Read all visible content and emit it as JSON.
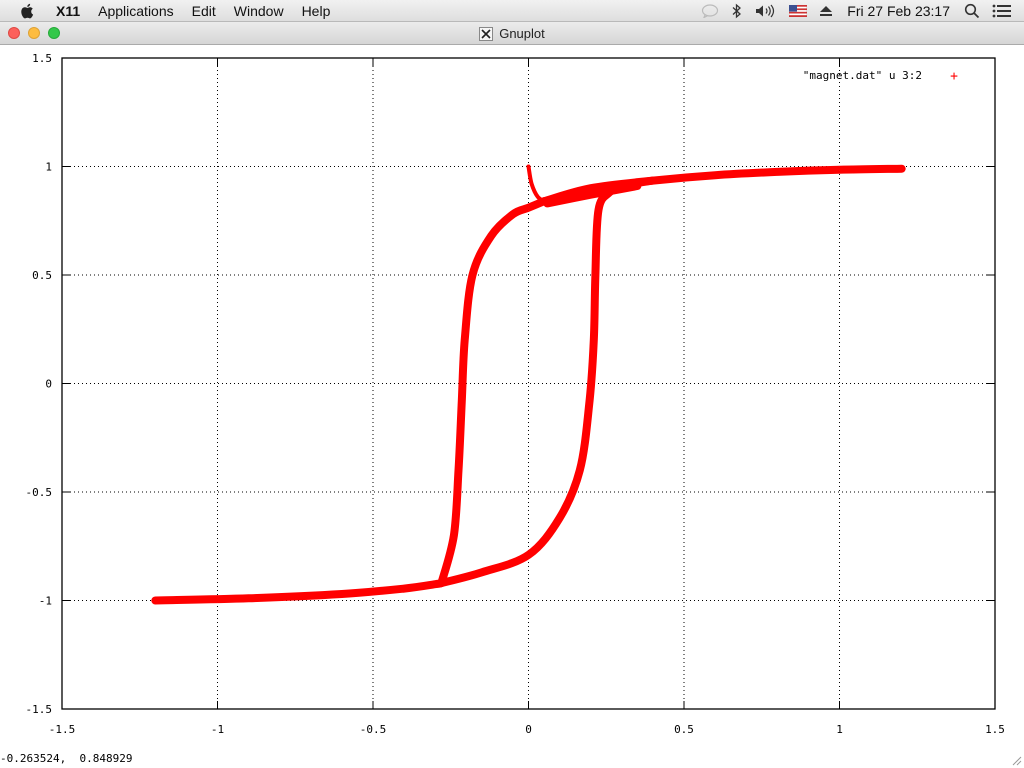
{
  "menubar": {
    "app_name": "X11",
    "items": [
      "Applications",
      "Edit",
      "Window",
      "Help"
    ],
    "clock": "Fri 27 Feb  23:17",
    "icons": [
      "apple-icon",
      "notifications-icon",
      "bluetooth-icon",
      "volume-icon",
      "us-flag-icon",
      "eject-icon",
      "spotlight-search-icon",
      "list-menu-icon"
    ]
  },
  "window": {
    "title": "Gnuplot"
  },
  "status": {
    "coordinate_readout": "-0.263524,  0.848929"
  },
  "chart_data": {
    "type": "line",
    "legend": {
      "label": "\"magnet.dat\" u 3:2",
      "marker": "+",
      "position": "top-right"
    },
    "series": [
      {
        "name": "\"magnet.dat\" u 3:2",
        "color": "#ff0000",
        "segments": [
          {
            "x": [
              -1.2,
              -0.9,
              -0.6,
              -0.4,
              -0.3,
              -0.28
            ],
            "y": [
              -1.0,
              -0.99,
              -0.97,
              -0.945,
              -0.925,
              -0.92
            ]
          },
          {
            "x": [
              -0.28,
              -0.24,
              -0.225,
              -0.215,
              -0.205,
              -0.18,
              -0.12,
              -0.05,
              0.0,
              0.05
            ],
            "y": [
              -0.92,
              -0.7,
              -0.4,
              -0.1,
              0.2,
              0.5,
              0.68,
              0.78,
              0.81,
              0.84
            ]
          },
          {
            "x": [
              -0.28,
              -0.15,
              0.0,
              0.1,
              0.165,
              0.195,
              0.21,
              0.215,
              0.225,
              0.26,
              0.3,
              0.4
            ],
            "y": [
              -0.92,
              -0.87,
              -0.79,
              -0.62,
              -0.4,
              -0.1,
              0.2,
              0.5,
              0.8,
              0.88,
              0.91,
              0.935
            ]
          },
          {
            "x": [
              0.05,
              0.2,
              0.4,
              0.6,
              0.8,
              1.0,
              1.2
            ],
            "y": [
              0.84,
              0.9,
              0.935,
              0.96,
              0.975,
              0.985,
              0.99
            ]
          },
          {
            "x": [
              0.0,
              0.01,
              0.03,
              0.06
            ],
            "y": [
              1.0,
              0.92,
              0.86,
              0.83
            ]
          },
          {
            "x": [
              0.06,
              0.2,
              0.35
            ],
            "y": [
              0.83,
              0.87,
              0.91
            ]
          }
        ]
      }
    ],
    "xlim": [
      -1.5,
      1.5
    ],
    "ylim": [
      -1.5,
      1.5
    ],
    "xticks": [
      "-1.5",
      "-1",
      "-0.5",
      "0",
      "0.5",
      "1",
      "1.5"
    ],
    "yticks": [
      "-1.5",
      "-1",
      "-0.5",
      "0",
      "0.5",
      "1",
      "1.5"
    ],
    "xtick_values": [
      -1.5,
      -1,
      -0.5,
      0,
      0.5,
      1,
      1.5
    ],
    "ytick_values": [
      -1.5,
      -1,
      -0.5,
      0,
      0.5,
      1,
      1.5
    ],
    "grid": true,
    "title": "",
    "xlabel": "",
    "ylabel": ""
  }
}
